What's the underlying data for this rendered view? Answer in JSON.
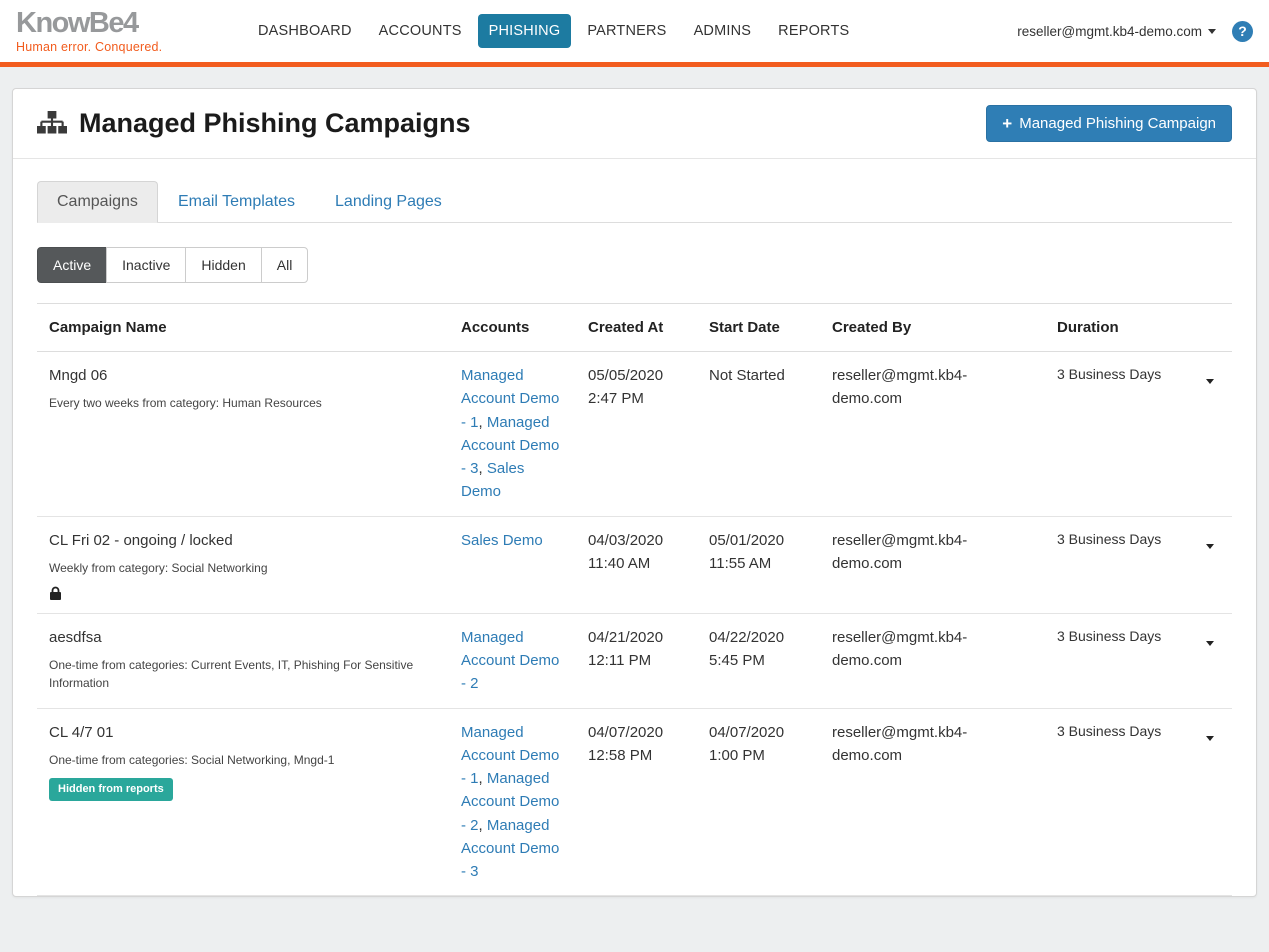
{
  "colors": {
    "accent": "#f25c1e",
    "nav-active": "#1d7ba1",
    "primary": "#2f7eb5",
    "link": "#2e7cb5",
    "badge": "#2aa79b",
    "dark-btn": "#55585a"
  },
  "navbar": {
    "logo_text": "KnowBe4",
    "logo_tagline": "Human error. Conquered.",
    "items": [
      {
        "label": "DASHBOARD"
      },
      {
        "label": "ACCOUNTS"
      },
      {
        "label": "PHISHING"
      },
      {
        "label": "PARTNERS"
      },
      {
        "label": "ADMINS"
      },
      {
        "label": "REPORTS"
      }
    ],
    "user_email": "reseller@mgmt.kb4-demo.com",
    "help_label": "?"
  },
  "page": {
    "title": "Managed Phishing Campaigns",
    "plus": "+",
    "new_campaign_button": "Managed Phishing Campaign"
  },
  "tabs": [
    {
      "label": "Campaigns"
    },
    {
      "label": "Email Templates"
    },
    {
      "label": "Landing Pages"
    }
  ],
  "filters": [
    {
      "label": "Active"
    },
    {
      "label": "Inactive"
    },
    {
      "label": "Hidden"
    },
    {
      "label": "All"
    }
  ],
  "table": {
    "columns": [
      "Campaign Name",
      "Accounts",
      "Created At",
      "Start Date",
      "Created By",
      "Duration"
    ],
    "rows": [
      {
        "name": "Mngd 06",
        "description": "Every two weeks from category: Human Resources",
        "locked": false,
        "badge": null,
        "accounts": [
          "Managed Account Demo - 1",
          "Managed Account Demo - 3",
          "Sales Demo"
        ],
        "created_at": "05/05/2020 2:47 PM",
        "start_date": "Not Started",
        "created_by": "reseller@mgmt.kb4-demo.com",
        "duration": "3 Business Days"
      },
      {
        "name": "CL Fri 02 - ongoing / locked",
        "description": "Weekly from category: Social Networking",
        "locked": true,
        "badge": null,
        "accounts": [
          "Sales Demo"
        ],
        "created_at": "04/03/2020 11:40 AM",
        "start_date": "05/01/2020 11:55 AM",
        "created_by": "reseller@mgmt.kb4-demo.com",
        "duration": "3 Business Days"
      },
      {
        "name": "aesdfsa",
        "description": "One-time from categories: Current Events, IT, Phishing For Sensitive Information",
        "locked": false,
        "badge": null,
        "accounts": [
          "Managed Account Demo - 2"
        ],
        "created_at": "04/21/2020 12:11 PM",
        "start_date": "04/22/2020 5:45 PM",
        "created_by": "reseller@mgmt.kb4-demo.com",
        "duration": "3 Business Days"
      },
      {
        "name": "CL 4/7 01",
        "description": "One-time from categories: Social Networking, Mngd-1",
        "locked": false,
        "badge": "Hidden from reports",
        "accounts": [
          "Managed Account Demo - 1",
          "Managed Account Demo - 2",
          "Managed Account Demo - 3"
        ],
        "created_at": "04/07/2020 12:58 PM",
        "start_date": "04/07/2020 1:00 PM",
        "created_by": "reseller@mgmt.kb4-demo.com",
        "duration": "3 Business Days"
      }
    ]
  }
}
